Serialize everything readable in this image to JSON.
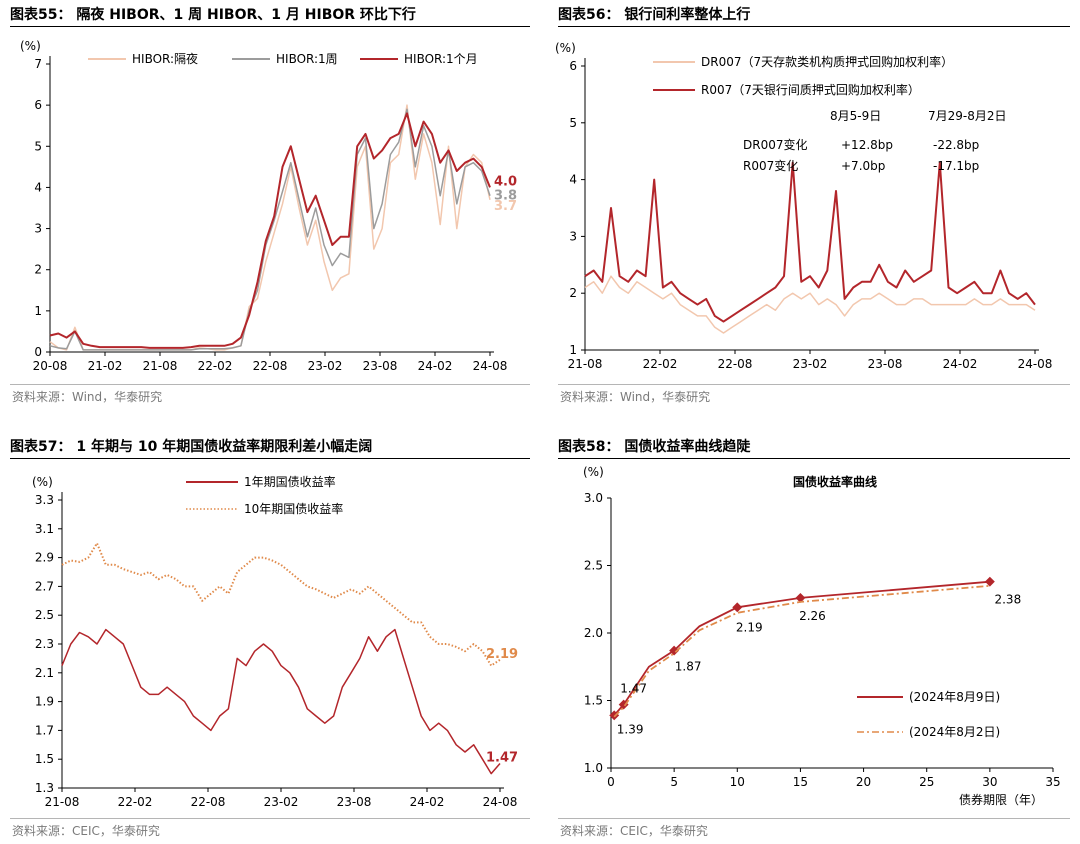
{
  "charts": [
    {
      "title": "图表55：  隔夜 HIBOR、1 周 HIBOR、1 月 HIBOR 环比下行",
      "source": "资料来源：Wind，华泰研究",
      "chart_data": {
        "type": "line",
        "unit": "(%)",
        "ylim": [
          0,
          7
        ],
        "yticks": [
          "0",
          "1",
          "2",
          "3",
          "4",
          "5",
          "6",
          "7"
        ],
        "xticks": [
          "20-08",
          "21-02",
          "21-08",
          "22-02",
          "22-08",
          "23-02",
          "23-08",
          "24-02",
          "24-08"
        ],
        "series": [
          {
            "name": "HIBOR:隔夜",
            "color": "#f2c7ae",
            "end_label": "3.7",
            "values": [
              0.25,
              0.1,
              0.05,
              0.6,
              0.05,
              0.05,
              0.05,
              0.05,
              0.05,
              0.05,
              0.05,
              0.05,
              0.05,
              0.05,
              0.05,
              0.05,
              0.05,
              0.05,
              0.1,
              0.08,
              0.05,
              0.05,
              0.1,
              0.15,
              1.1,
              1.3,
              2.2,
              2.9,
              3.6,
              4.5,
              3.5,
              2.6,
              3.2,
              2.2,
              1.5,
              1.8,
              1.9,
              4.5,
              5.0,
              2.5,
              3.0,
              4.6,
              4.8,
              6.0,
              4.2,
              5.3,
              4.6,
              3.1,
              5.0,
              3.0,
              4.5,
              4.8,
              4.6,
              3.7
            ]
          },
          {
            "name": "HIBOR:1周",
            "color": "#9c9c9c",
            "end_label": "3.8",
            "values": [
              0.15,
              0.1,
              0.08,
              0.5,
              0.05,
              0.05,
              0.05,
              0.05,
              0.05,
              0.05,
              0.05,
              0.05,
              0.05,
              0.05,
              0.05,
              0.05,
              0.05,
              0.05,
              0.08,
              0.08,
              0.08,
              0.08,
              0.1,
              0.15,
              1.0,
              1.5,
              2.6,
              3.2,
              3.9,
              4.6,
              3.7,
              2.8,
              3.5,
              2.6,
              2.1,
              2.4,
              2.3,
              4.8,
              5.2,
              3.0,
              3.6,
              4.8,
              5.1,
              5.9,
              4.5,
              5.5,
              5.0,
              3.8,
              4.9,
              3.6,
              4.5,
              4.6,
              4.4,
              3.8
            ]
          },
          {
            "name": "HIBOR:1个月",
            "color": "#b3262b",
            "end_label": "4.0",
            "values": [
              0.4,
              0.45,
              0.35,
              0.5,
              0.2,
              0.15,
              0.12,
              0.12,
              0.12,
              0.12,
              0.12,
              0.12,
              0.1,
              0.1,
              0.1,
              0.1,
              0.1,
              0.12,
              0.15,
              0.15,
              0.15,
              0.15,
              0.2,
              0.35,
              0.9,
              1.7,
              2.7,
              3.3,
              4.5,
              5.0,
              4.2,
              3.4,
              3.8,
              3.2,
              2.6,
              2.8,
              2.8,
              5.0,
              5.3,
              4.7,
              4.9,
              5.2,
              5.3,
              5.8,
              5.0,
              5.6,
              5.3,
              4.6,
              4.9,
              4.4,
              4.6,
              4.7,
              4.5,
              4.0
            ]
          }
        ]
      }
    },
    {
      "title": "图表56：  银行间利率整体上行",
      "source": "资料来源：Wind，华泰研究",
      "chart_data": {
        "type": "line",
        "unit": "(%)",
        "ylim": [
          1,
          6
        ],
        "yticks": [
          "1",
          "2",
          "3",
          "4",
          "5",
          "6"
        ],
        "xticks": [
          "21-08",
          "22-02",
          "22-08",
          "23-02",
          "23-08",
          "24-02",
          "24-08"
        ],
        "series": [
          {
            "name": "DR007（7天存款类机构质押式回购加权利率）",
            "color": "#f2c7ae",
            "values": [
              2.1,
              2.2,
              2.0,
              2.3,
              2.1,
              2.0,
              2.2,
              2.1,
              2.0,
              1.9,
              2.0,
              1.8,
              1.7,
              1.6,
              1.6,
              1.4,
              1.3,
              1.4,
              1.5,
              1.6,
              1.7,
              1.8,
              1.7,
              1.9,
              2.0,
              1.9,
              2.0,
              1.8,
              1.9,
              1.8,
              1.6,
              1.8,
              1.9,
              1.9,
              2.0,
              1.9,
              1.8,
              1.8,
              1.9,
              1.9,
              1.8,
              1.8,
              1.8,
              1.8,
              1.8,
              1.9,
              1.8,
              1.8,
              1.9,
              1.8,
              1.8,
              1.8,
              1.7
            ]
          },
          {
            "name": "R007（7天银行间质押式回购加权利率）",
            "color": "#b3262b",
            "values": [
              2.3,
              2.4,
              2.2,
              3.5,
              2.3,
              2.2,
              2.4,
              2.3,
              4.0,
              2.1,
              2.2,
              2.0,
              1.9,
              1.8,
              1.9,
              1.6,
              1.5,
              1.6,
              1.7,
              1.8,
              1.9,
              2.0,
              2.1,
              2.3,
              4.3,
              2.2,
              2.3,
              2.1,
              2.4,
              3.8,
              1.9,
              2.1,
              2.2,
              2.2,
              2.5,
              2.2,
              2.1,
              2.4,
              2.2,
              2.3,
              2.4,
              4.3,
              2.1,
              2.0,
              2.1,
              2.2,
              2.0,
              2.0,
              2.4,
              2.0,
              1.9,
              2.0,
              1.8
            ]
          }
        ],
        "annotations": {
          "headers": [
            "8月5-9日",
            "7月29-8月2日"
          ],
          "rows": [
            {
              "label": "DR007变化",
              "values": [
                "+12.8bp",
                "-22.8bp"
              ]
            },
            {
              "label": "R007变化",
              "values": [
                "+7.0bp",
                "-17.1bp"
              ]
            }
          ]
        }
      }
    },
    {
      "title": "图表57：  1 年期与 10 年期国债收益率期限利差小幅走阔",
      "source": "资料来源：CEIC，华泰研究",
      "chart_data": {
        "type": "line",
        "unit": "(%)",
        "ylim": [
          1.3,
          3.3
        ],
        "yticks": [
          "1.3",
          "1.5",
          "1.7",
          "1.9",
          "2.1",
          "2.3",
          "2.5",
          "2.7",
          "2.9",
          "3.1",
          "3.3"
        ],
        "xticks": [
          "21-08",
          "22-02",
          "22-08",
          "23-02",
          "23-08",
          "24-02",
          "24-08"
        ],
        "series": [
          {
            "name": "1年期国债收益率",
            "color": "#b3262b",
            "style": "solid",
            "end_label": "1.47",
            "values": [
              2.15,
              2.3,
              2.38,
              2.35,
              2.3,
              2.4,
              2.35,
              2.3,
              2.15,
              2.0,
              1.95,
              1.95,
              2.0,
              1.95,
              1.9,
              1.8,
              1.75,
              1.7,
              1.8,
              1.85,
              2.2,
              2.15,
              2.25,
              2.3,
              2.25,
              2.15,
              2.1,
              2.0,
              1.85,
              1.8,
              1.75,
              1.8,
              2.0,
              2.1,
              2.2,
              2.35,
              2.25,
              2.35,
              2.4,
              2.2,
              2.0,
              1.8,
              1.7,
              1.75,
              1.7,
              1.6,
              1.55,
              1.6,
              1.5,
              1.4,
              1.47
            ]
          },
          {
            "name": "10年期国债收益率",
            "color": "#e08a4a",
            "style": "dotted",
            "end_label": "2.19",
            "values": [
              2.85,
              2.88,
              2.87,
              2.9,
              3.0,
              2.85,
              2.85,
              2.82,
              2.8,
              2.78,
              2.8,
              2.75,
              2.78,
              2.75,
              2.7,
              2.7,
              2.6,
              2.65,
              2.7,
              2.65,
              2.8,
              2.85,
              2.9,
              2.9,
              2.88,
              2.85,
              2.8,
              2.75,
              2.7,
              2.68,
              2.65,
              2.62,
              2.65,
              2.68,
              2.65,
              2.7,
              2.65,
              2.6,
              2.55,
              2.5,
              2.45,
              2.45,
              2.35,
              2.3,
              2.3,
              2.28,
              2.25,
              2.3,
              2.25,
              2.15,
              2.19
            ]
          }
        ]
      }
    },
    {
      "title": "图表58：  国债收益率曲线趋陡",
      "source": "资料来源：CEIC，华泰研究",
      "chart_data": {
        "type": "line",
        "title": "国债收益率曲线",
        "unit": "(%)",
        "xlabel": "债券期限（年）",
        "xlim": [
          0,
          35
        ],
        "ylim": [
          1.0,
          3.0
        ],
        "xticks": [
          "0",
          "5",
          "10",
          "15",
          "20",
          "25",
          "30",
          "35"
        ],
        "yticks": [
          "1.0",
          "1.5",
          "2.0",
          "2.5",
          "3.0"
        ],
        "series": [
          {
            "name": "(2024年8月9日)",
            "color": "#b3262b",
            "style": "solid",
            "x": [
              0.25,
              1,
              3,
              5,
              7,
              10,
              15,
              30
            ],
            "values": [
              1.39,
              1.47,
              1.75,
              1.87,
              2.05,
              2.19,
              2.26,
              2.38
            ],
            "marked_x": [
              0.25,
              1,
              5,
              10,
              15,
              30
            ]
          },
          {
            "name": "(2024年8月2日)",
            "color": "#e08a4a",
            "style": "dashdot",
            "x": [
              0.25,
              1,
              3,
              5,
              7,
              10,
              15,
              30
            ],
            "values": [
              1.38,
              1.45,
              1.72,
              1.85,
              2.02,
              2.15,
              2.23,
              2.35
            ]
          }
        ],
        "data_labels": [
          {
            "x": 0.25,
            "text": "1.39"
          },
          {
            "x": 1,
            "text": "1.47"
          },
          {
            "x": 5,
            "text": "1.87"
          },
          {
            "x": 10,
            "text": "2.19"
          },
          {
            "x": 15,
            "text": "2.26"
          },
          {
            "x": 30,
            "text": "2.38"
          }
        ]
      }
    }
  ]
}
